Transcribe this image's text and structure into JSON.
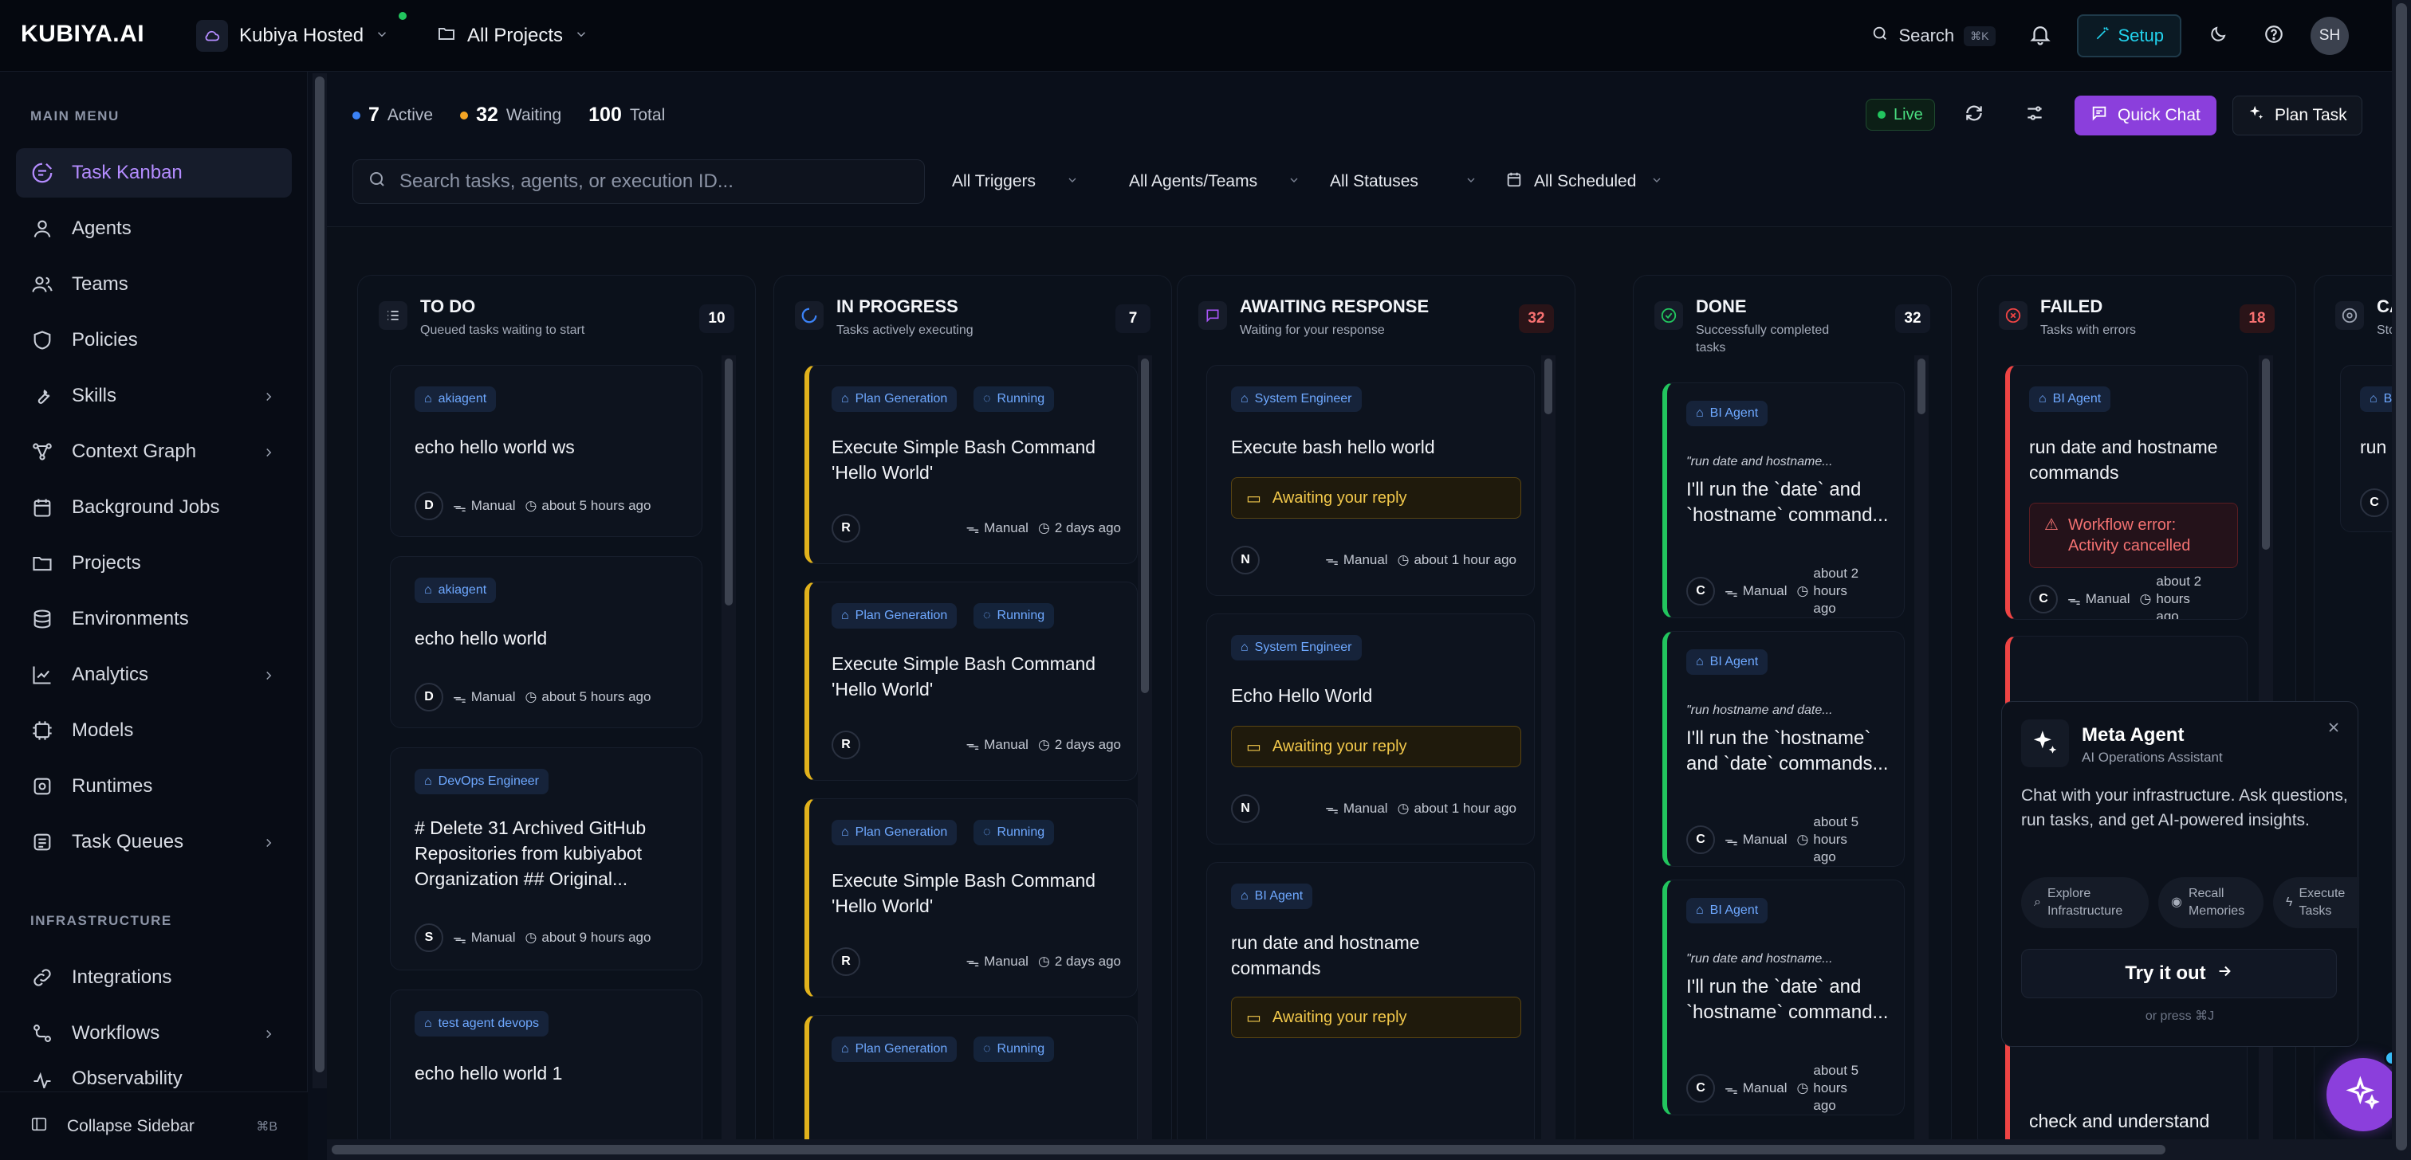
{
  "app": {
    "logo": "KUBIYA.AI",
    "org_name": "Kubiya Hosted",
    "projects_label": "All Projects",
    "search_label": "Search",
    "search_kbd": "⌘K",
    "setup_label": "Setup",
    "avatar_initials": "SH"
  },
  "sidebar": {
    "main_menu_heading": "MAIN MENU",
    "infrastructure_heading": "INFRASTRUCTURE",
    "items": [
      {
        "label": "Task Kanban",
        "icon": "kanban-icon",
        "active": true
      },
      {
        "label": "Agents",
        "icon": "agent-icon"
      },
      {
        "label": "Teams",
        "icon": "teams-icon"
      },
      {
        "label": "Policies",
        "icon": "shield-icon"
      },
      {
        "label": "Skills",
        "icon": "wrench-icon",
        "expandable": true
      },
      {
        "label": "Context Graph",
        "icon": "graph-icon",
        "expandable": true
      },
      {
        "label": "Background Jobs",
        "icon": "calendar-icon"
      },
      {
        "label": "Projects",
        "icon": "folder-icon"
      },
      {
        "label": "Environments",
        "icon": "database-icon"
      },
      {
        "label": "Analytics",
        "icon": "chart-icon",
        "expandable": true
      },
      {
        "label": "Models",
        "icon": "model-icon"
      },
      {
        "label": "Runtimes",
        "icon": "runtime-icon"
      },
      {
        "label": "Task Queues",
        "icon": "queue-icon",
        "expandable": true
      }
    ],
    "infra_items": [
      {
        "label": "Integrations",
        "icon": "plug-icon"
      },
      {
        "label": "Workflows",
        "icon": "workflow-icon",
        "expandable": true
      },
      {
        "label": "Observability",
        "icon": "observe-icon",
        "expandable": true
      }
    ],
    "collapse_label": "Collapse Sidebar",
    "collapse_kbd": "⌘B"
  },
  "header": {
    "active_count": "7",
    "active_label": "Active",
    "waiting_count": "32",
    "waiting_label": "Waiting",
    "total_count": "100",
    "total_label": "Total",
    "live_label": "Live",
    "quick_chat_label": "Quick Chat",
    "plan_task_label": "Plan Task",
    "search_placeholder": "Search tasks, agents, or execution ID...",
    "filters": [
      "All Triggers",
      "All Agents/Teams",
      "All Statuses",
      "All Scheduled"
    ]
  },
  "columns": {
    "todo": {
      "title": "TO DO",
      "subtitle": "Queued tasks waiting to start",
      "count": "10"
    },
    "in_progress": {
      "title": "IN PROGRESS",
      "subtitle": "Tasks actively executing",
      "count": "7"
    },
    "awaiting": {
      "title": "AWAITING RESPONSE",
      "subtitle": "Waiting for your response",
      "count": "32"
    },
    "done": {
      "title": "DONE",
      "subtitle": "Successfully completed tasks",
      "count": "32"
    },
    "failed": {
      "title": "FAILED",
      "subtitle": "Tasks with errors",
      "count": "18"
    },
    "cancelled": {
      "title": "CA",
      "subtitle": "Sto"
    }
  },
  "cards": {
    "todo": [
      {
        "tag": "akiagent",
        "title": "echo hello world ws",
        "avatar": "D",
        "trigger": "Manual",
        "time": "about 5 hours ago"
      },
      {
        "tag": "akiagent",
        "title": "echo hello world",
        "avatar": "D",
        "trigger": "Manual",
        "time": "about 5 hours ago"
      },
      {
        "tag": "DevOps Engineer",
        "title": "# Delete 31 Archived GitHub Repositories from kubiyabot Organization ## Original...",
        "avatar": "S",
        "trigger": "Manual",
        "time": "about 9 hours ago"
      },
      {
        "tag": "test agent devops",
        "title": "echo hello world 1"
      }
    ],
    "in_progress": [
      {
        "tag": "Plan Generation",
        "status": "Running",
        "title": "Execute Simple Bash Command 'Hello World'",
        "avatar": "R",
        "trigger": "Manual",
        "time": "2 days ago"
      },
      {
        "tag": "Plan Generation",
        "status": "Running",
        "title": "Execute Simple Bash Command 'Hello World'",
        "avatar": "R",
        "trigger": "Manual",
        "time": "2 days ago"
      },
      {
        "tag": "Plan Generation",
        "status": "Running",
        "title": "Execute Simple Bash Command 'Hello World'",
        "avatar": "R",
        "trigger": "Manual",
        "time": "2 days ago"
      },
      {
        "tag": "Plan Generation",
        "status": "Running"
      }
    ],
    "awaiting": [
      {
        "tag": "System Engineer",
        "title": "Execute bash hello world",
        "notice": "Awaiting your reply",
        "avatar": "N",
        "trigger": "Manual",
        "time": "about 1 hour ago"
      },
      {
        "tag": "System Engineer",
        "title": "Echo Hello World",
        "notice": "Awaiting your reply",
        "avatar": "N",
        "trigger": "Manual",
        "time": "about 1 hour ago"
      },
      {
        "tag": "BI Agent",
        "title": "run date and hostname commands",
        "notice": "Awaiting your reply"
      }
    ],
    "done": [
      {
        "tag": "BI Agent",
        "quote": "\"run date and hostname...",
        "body": "I'll run the `date` and `hostname` command...",
        "avatar": "C",
        "trigger": "Manual",
        "time": "about 2 hours ago"
      },
      {
        "tag": "BI Agent",
        "quote": "\"run hostname and date...",
        "body": "I'll run the `hostname` and `date` commands...",
        "avatar": "C",
        "trigger": "Manual",
        "time": "about 5 hours ago"
      },
      {
        "tag": "BI Agent",
        "quote": "\"run date and hostname...",
        "body": "I'll run the `date` and `hostname` command...",
        "avatar": "C",
        "trigger": "Manual",
        "time": "about 5 hours ago"
      }
    ],
    "failed": [
      {
        "tag": "BI Agent",
        "title": "run date and hostname commands",
        "error": "Workflow error: Activity cancelled",
        "avatar": "C",
        "trigger": "Manual",
        "time": "about 2 hours ago"
      },
      {
        "title": "check and understand"
      }
    ],
    "cancelled": [
      {
        "tag": "BI",
        "title": "run ho",
        "avatar": "C"
      }
    ]
  },
  "meta_agent": {
    "title": "Meta Agent",
    "subtitle": "AI Operations Assistant",
    "description": "Chat with your infrastructure. Ask questions, run tasks, and get AI-powered insights.",
    "chips": [
      "Explore Infrastructure",
      "Recall Memories",
      "Execute Tasks"
    ],
    "try_label": "Try it out",
    "or_press": "or press ⌘J"
  },
  "colors": {
    "accent_purple": "#8b3fdc",
    "running_yellow": "#e1b21c",
    "done_green": "#22c55e",
    "failed_red": "#ef4444",
    "tag_blue": "#6ea8ff"
  }
}
